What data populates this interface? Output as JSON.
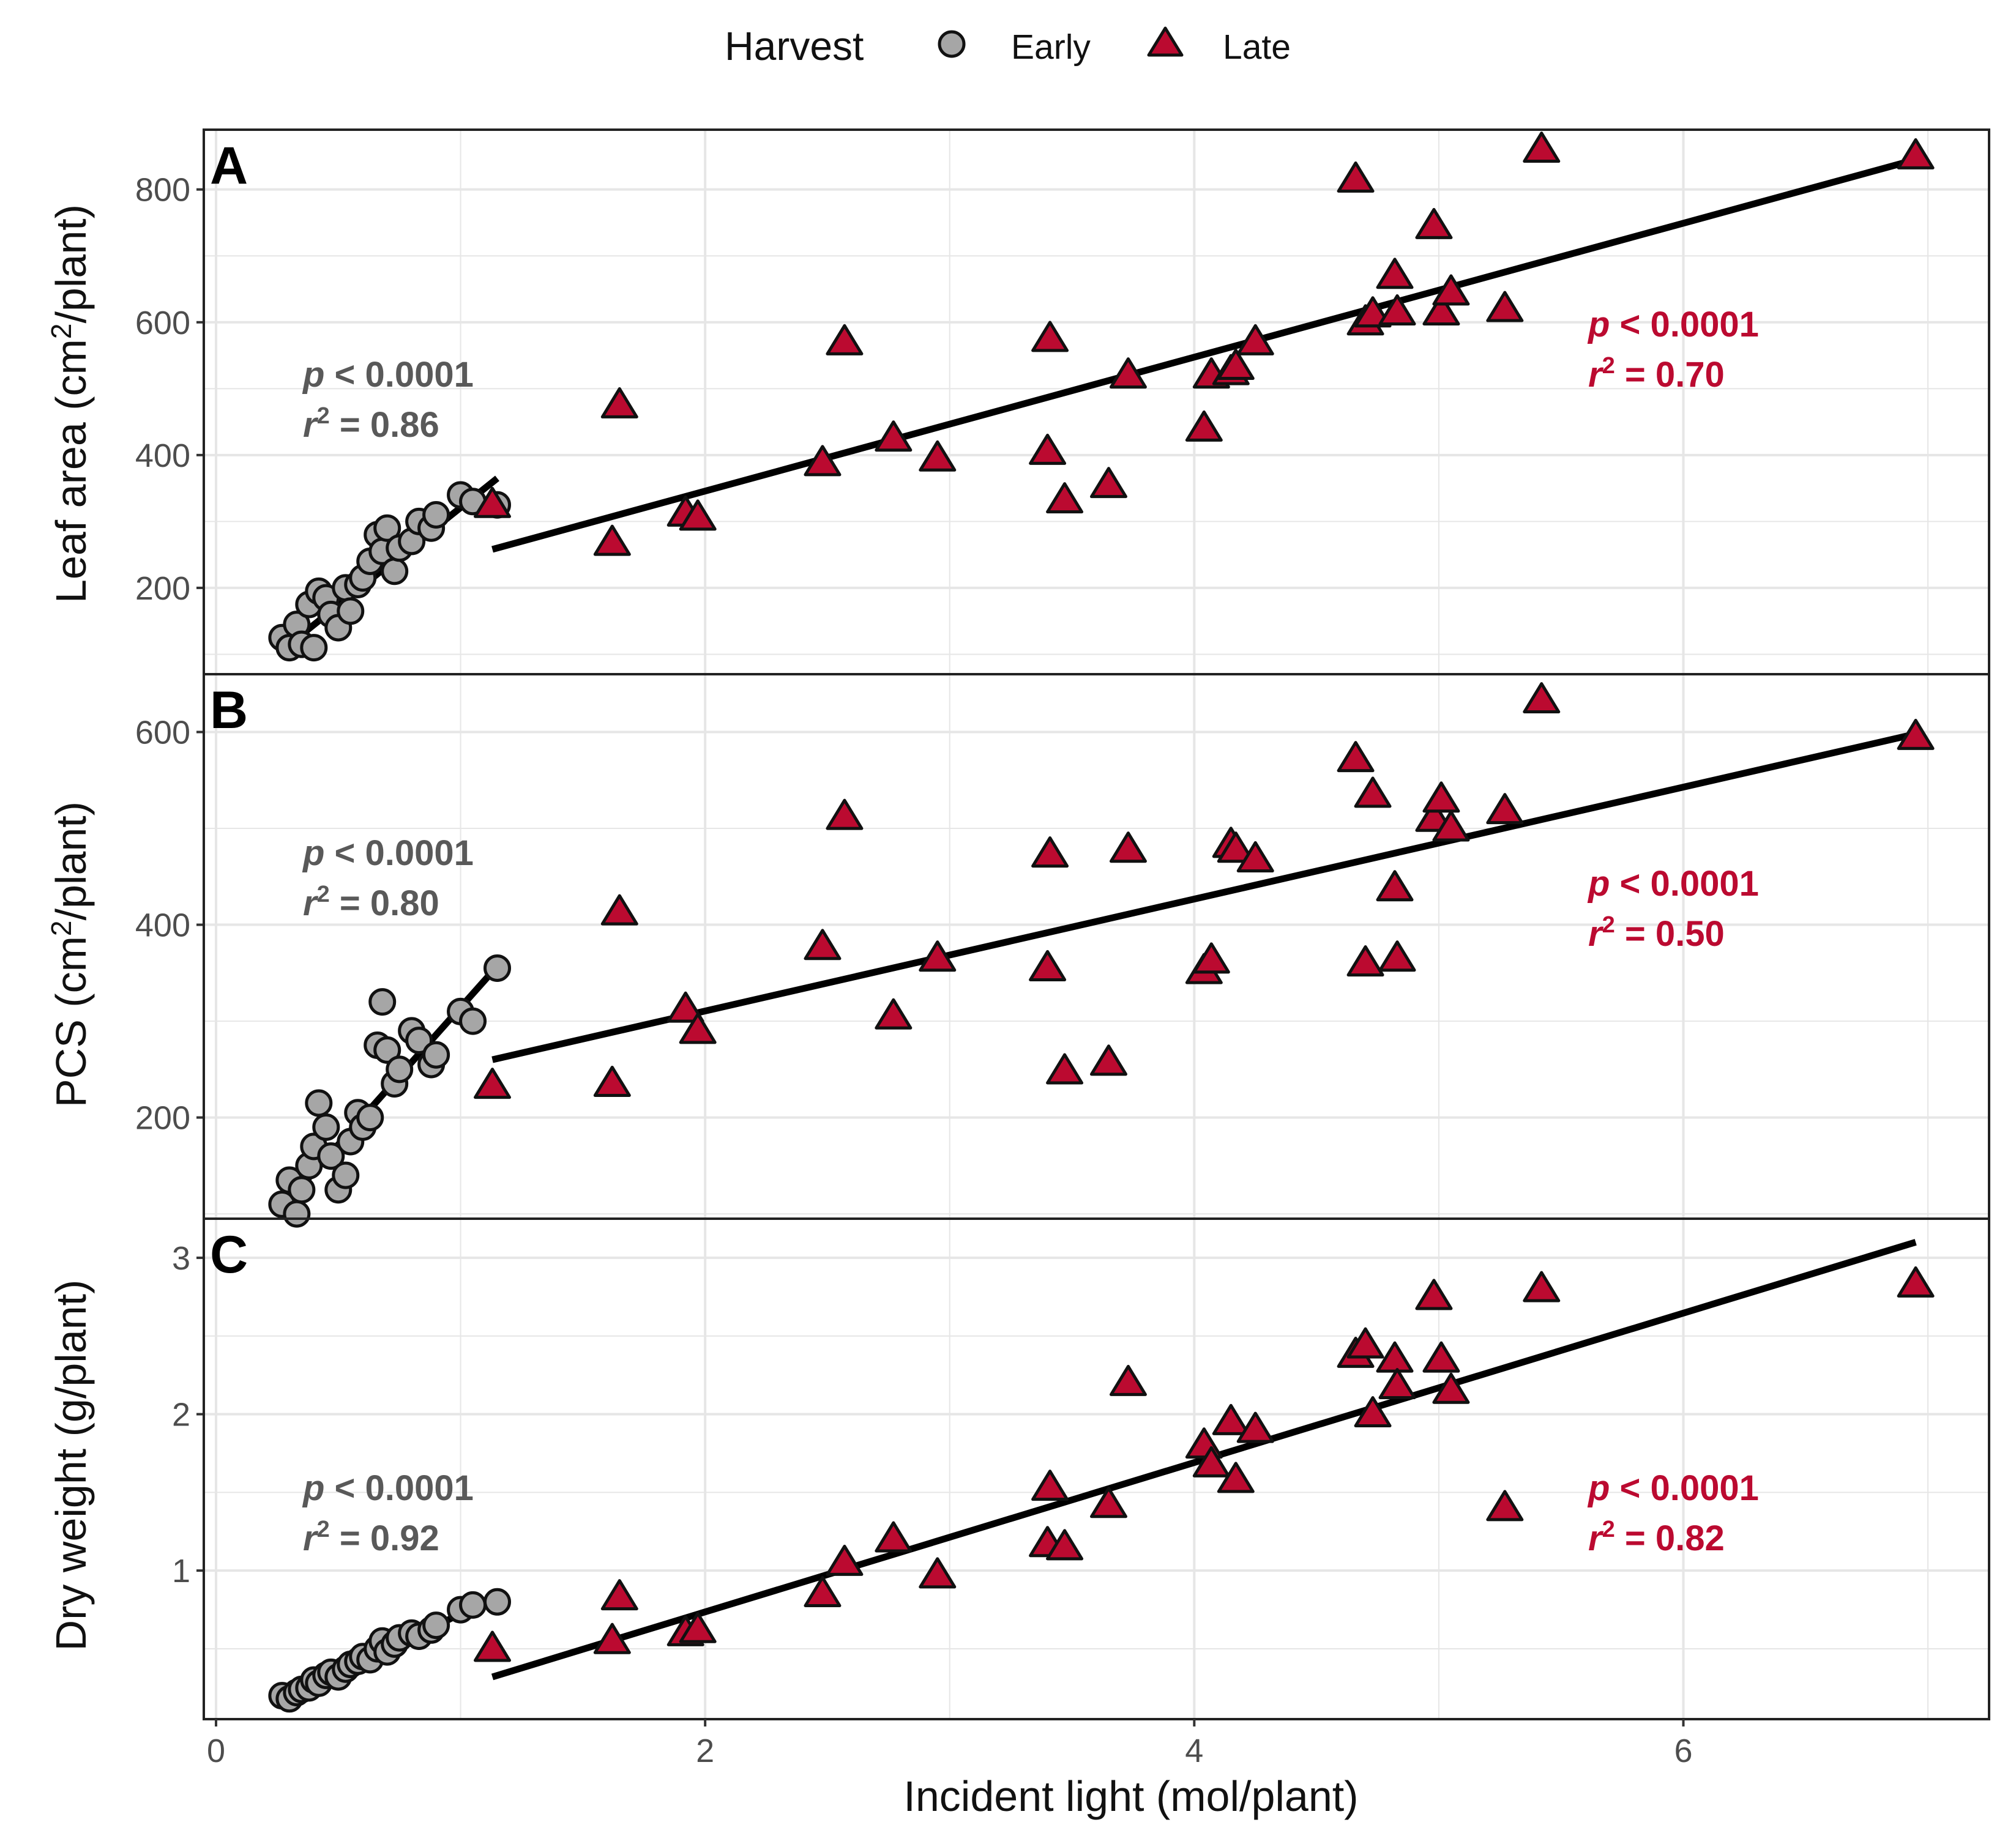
{
  "legend": {
    "title": "Harvest",
    "entries": [
      {
        "label": "Early",
        "shape": "circle-icon",
        "color": "#a6a6a6"
      },
      {
        "label": "Late",
        "shape": "triangle-icon",
        "color": "#bb0a30"
      }
    ]
  },
  "xlabel": "Incident light (mol/plant)",
  "x_ticks": [
    "0",
    "2",
    "4",
    "6"
  ],
  "colors": {
    "early": "#a6a6a6",
    "late": "#bb0a30",
    "early_text": "#595959",
    "late_text": "#bb0a30"
  },
  "chart_data": [
    {
      "type": "scatter",
      "panel": "A",
      "ylabel_main": "Leaf area  (cm",
      "ylabel_sup": "2",
      "ylabel_tail": "/plant)",
      "xlim": [
        -0.05,
        7.25
      ],
      "ylim": [
        70,
        890
      ],
      "y_ticks": [
        200,
        400,
        600,
        800
      ],
      "y_tick_labels": [
        "200",
        "400",
        "600",
        "800"
      ],
      "early": {
        "x": [
          0.27,
          0.3,
          0.33,
          0.35,
          0.38,
          0.4,
          0.42,
          0.45,
          0.47,
          0.5,
          0.53,
          0.55,
          0.58,
          0.6,
          0.63,
          0.66,
          0.68,
          0.7,
          0.73,
          0.75,
          0.8,
          0.83,
          0.88,
          0.9,
          1.0,
          1.05,
          1.15
        ],
        "y": [
          125,
          110,
          145,
          115,
          175,
          110,
          195,
          185,
          160,
          140,
          200,
          165,
          205,
          215,
          240,
          280,
          255,
          290,
          225,
          260,
          270,
          300,
          290,
          310,
          340,
          330,
          325
        ],
        "p_label": "p",
        "p_text": " < 0.0001",
        "r_label": "r",
        "r_sup": "2",
        "r_text": " = 0.86",
        "fit": {
          "x": [
            0.3,
            1.15
          ],
          "y": [
            115,
            365
          ]
        }
      },
      "late": {
        "x": [
          1.13,
          1.62,
          1.65,
          1.92,
          1.97,
          2.48,
          2.57,
          2.77,
          2.95,
          3.4,
          3.41,
          3.47,
          3.65,
          3.73,
          4.04,
          4.07,
          4.15,
          4.17,
          4.25,
          4.66,
          4.7,
          4.73,
          4.82,
          4.83,
          4.98,
          5.01,
          5.05,
          5.27,
          5.42,
          6.95
        ],
        "y": [
          325,
          268,
          475,
          312,
          306,
          388,
          570,
          425,
          395,
          405,
          575,
          332,
          355,
          520,
          440,
          520,
          525,
          533,
          570,
          815,
          600,
          612,
          670,
          615,
          745,
          615,
          645,
          620,
          860,
          850
        ],
        "p_label": "p",
        "p_text": " < 0.0001",
        "r_label": "r",
        "r_sup": "2",
        "r_text": " = 0.70",
        "fit": {
          "x": [
            1.13,
            6.95
          ],
          "y": [
            258,
            845
          ]
        }
      }
    },
    {
      "type": "scatter",
      "panel": "B",
      "ylabel_main": "PCS  (cm",
      "ylabel_sup": "2",
      "ylabel_tail": "/plant)",
      "xlim": [
        -0.05,
        7.25
      ],
      "ylim": [
        95,
        660
      ],
      "y_ticks": [
        200,
        400,
        600
      ],
      "y_tick_labels": [
        "200",
        "400",
        "600"
      ],
      "early": {
        "x": [
          0.27,
          0.3,
          0.33,
          0.35,
          0.38,
          0.4,
          0.42,
          0.45,
          0.47,
          0.5,
          0.53,
          0.55,
          0.58,
          0.6,
          0.63,
          0.66,
          0.68,
          0.7,
          0.73,
          0.75,
          0.8,
          0.83,
          0.88,
          0.9,
          1.0,
          1.05,
          1.15
        ],
        "y": [
          110,
          135,
          100,
          125,
          150,
          170,
          215,
          190,
          160,
          125,
          140,
          175,
          205,
          190,
          200,
          275,
          320,
          270,
          235,
          250,
          290,
          280,
          255,
          265,
          310,
          300,
          355
        ],
        "p_label": "p",
        "p_text": " < 0.0001",
        "r_label": "r",
        "r_sup": "2",
        "r_text": " = 0.80",
        "fit": {
          "x": [
            0.3,
            1.15
          ],
          "y": [
            115,
            357
          ]
        }
      },
      "late": {
        "x": [
          1.13,
          1.62,
          1.65,
          1.92,
          1.97,
          2.48,
          2.57,
          2.77,
          2.95,
          3.4,
          3.41,
          3.47,
          3.65,
          3.73,
          4.04,
          4.07,
          4.15,
          4.17,
          4.25,
          4.66,
          4.7,
          4.73,
          4.82,
          4.83,
          4.98,
          5.01,
          5.05,
          5.27,
          5.42,
          6.95
        ],
        "y": [
          233,
          235,
          413,
          312,
          290,
          377,
          512,
          305,
          365,
          355,
          473,
          248,
          257,
          478,
          352,
          363,
          483,
          478,
          468,
          572,
          360,
          535,
          438,
          365,
          510,
          530,
          500,
          518,
          633,
          595
        ],
        "p_label": "p",
        "p_text": " < 0.0001",
        "r_label": "r",
        "r_sup": "2",
        "r_text": " = 0.50",
        "fit": {
          "x": [
            1.13,
            6.95
          ],
          "y": [
            260,
            598
          ]
        }
      }
    },
    {
      "type": "scatter",
      "panel": "C",
      "ylabel_main": "Dry weight  (g/plant)",
      "ylabel_sup": "",
      "ylabel_tail": "",
      "xlim": [
        -0.05,
        7.25
      ],
      "ylim": [
        0.05,
        3.25
      ],
      "y_ticks": [
        1,
        2,
        3
      ],
      "y_tick_labels": [
        "1",
        "2",
        "3"
      ],
      "early": {
        "x": [
          0.27,
          0.3,
          0.33,
          0.35,
          0.38,
          0.4,
          0.42,
          0.45,
          0.47,
          0.5,
          0.53,
          0.55,
          0.58,
          0.6,
          0.63,
          0.66,
          0.68,
          0.7,
          0.73,
          0.75,
          0.8,
          0.83,
          0.88,
          0.9,
          1.0,
          1.05,
          1.15
        ],
        "y": [
          0.2,
          0.18,
          0.22,
          0.24,
          0.25,
          0.3,
          0.28,
          0.33,
          0.35,
          0.32,
          0.37,
          0.4,
          0.42,
          0.45,
          0.43,
          0.5,
          0.55,
          0.48,
          0.53,
          0.57,
          0.6,
          0.58,
          0.62,
          0.65,
          0.75,
          0.78,
          0.8
        ],
        "p_label": "p",
        "p_text": " < 0.0001",
        "r_label": "r",
        "r_sup": "2",
        "r_text": " = 0.92",
        "fit": {
          "x": [
            0.3,
            1.15
          ],
          "y": [
            0.15,
            0.85
          ]
        }
      },
      "late": {
        "x": [
          1.13,
          1.62,
          1.65,
          1.92,
          1.97,
          2.48,
          2.57,
          2.77,
          2.95,
          3.4,
          3.41,
          3.47,
          3.65,
          3.73,
          4.04,
          4.07,
          4.15,
          4.17,
          4.25,
          4.66,
          4.7,
          4.73,
          4.82,
          4.83,
          4.98,
          5.01,
          5.05,
          5.27,
          5.42,
          6.95
        ],
        "y": [
          0.5,
          0.55,
          0.83,
          0.6,
          0.62,
          0.85,
          1.05,
          1.2,
          0.97,
          1.17,
          1.53,
          1.15,
          1.42,
          2.2,
          1.8,
          1.68,
          1.95,
          1.58,
          1.9,
          2.38,
          2.44,
          2.0,
          2.35,
          2.18,
          2.75,
          2.35,
          2.15,
          1.4,
          2.8,
          2.83
        ],
        "p_label": "p",
        "p_text": " < 0.0001",
        "r_label": "r",
        "r_sup": "2",
        "r_text": " = 0.82",
        "fit": {
          "x": [
            1.13,
            6.95
          ],
          "y": [
            0.32,
            3.1
          ]
        }
      }
    }
  ]
}
